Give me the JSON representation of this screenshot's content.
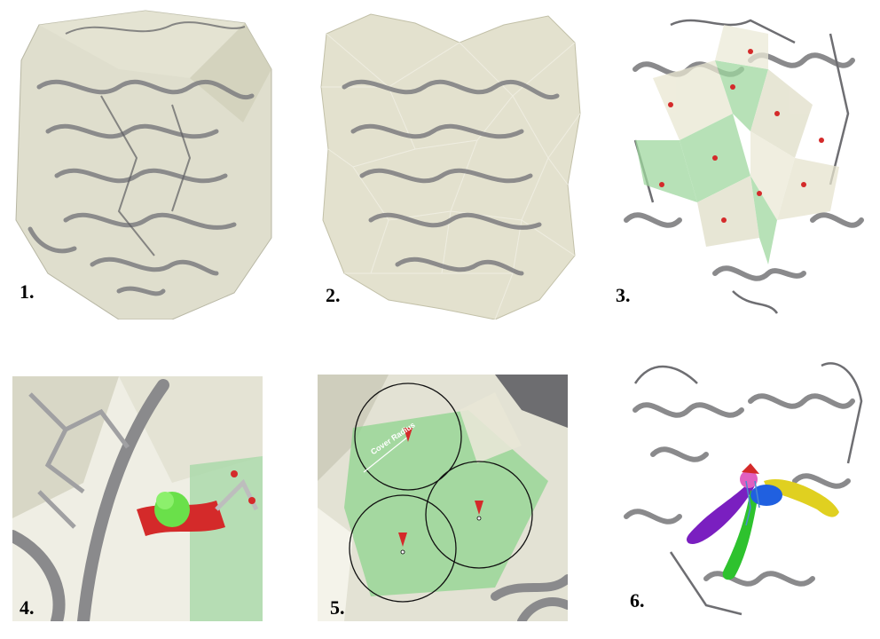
{
  "panels": [
    {
      "label": "1."
    },
    {
      "label": "2."
    },
    {
      "label": "3."
    },
    {
      "label": "4."
    },
    {
      "label": "5."
    },
    {
      "label": "6."
    }
  ],
  "annotations": {
    "cover_radius": "Cover Radius"
  },
  "colors": {
    "protein": "#8a8a8c",
    "hull": "#d9d8c4",
    "green_region": "#8fd48f",
    "probe": "#d42a2a",
    "tunnel_purple": "#7a1fc0",
    "tunnel_green": "#2ec22e",
    "tunnel_blue": "#2060e0",
    "tunnel_yellow": "#e0d020",
    "tunnel_pink": "#e060c0"
  }
}
